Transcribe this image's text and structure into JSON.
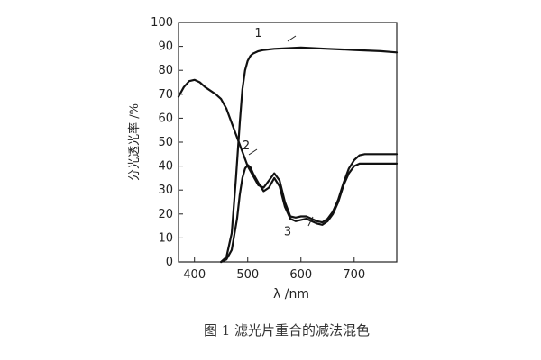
{
  "chart_data": {
    "type": "line",
    "title": "",
    "caption": "图 1  滤光片重合的减法混色",
    "xlabel": "λ /nm",
    "ylabel": "分光透光率 /%",
    "xlim": [
      370,
      780
    ],
    "ylim": [
      0,
      100
    ],
    "xticks": [
      400,
      500,
      600,
      700
    ],
    "yticks": [
      0,
      10,
      20,
      30,
      40,
      50,
      60,
      70,
      80,
      90,
      100
    ],
    "grid": false,
    "series": [
      {
        "name": "1",
        "x": [
          450,
          460,
          470,
          478,
          485,
          490,
          495,
          500,
          505,
          510,
          520,
          530,
          550,
          600,
          650,
          700,
          750,
          780
        ],
        "y": [
          0,
          2,
          12,
          35,
          58,
          72,
          80,
          84,
          86,
          87,
          88,
          88.5,
          89,
          89.5,
          89,
          88.5,
          88,
          87.5
        ]
      },
      {
        "name": "2",
        "x": [
          370,
          380,
          390,
          400,
          410,
          420,
          430,
          440,
          450,
          460,
          470,
          480,
          490,
          500,
          510,
          520,
          530,
          540,
          550,
          560,
          570,
          580,
          590,
          600,
          610,
          620,
          630,
          640,
          650,
          660,
          670,
          680,
          690,
          700,
          710,
          720,
          730,
          740,
          780
        ],
        "y": [
          69,
          73,
          75.5,
          76,
          75,
          73,
          71.5,
          70,
          68,
          64,
          58,
          52,
          46,
          40,
          36,
          32,
          31,
          34,
          37,
          34,
          25,
          19,
          18.5,
          19,
          19,
          18,
          17,
          16.5,
          18,
          21,
          26,
          33,
          39,
          42.5,
          44.5,
          45,
          45,
          45,
          45
        ]
      },
      {
        "name": "3",
        "x": [
          450,
          460,
          470,
          480,
          485,
          490,
          495,
          500,
          505,
          510,
          520,
          530,
          540,
          550,
          560,
          570,
          580,
          590,
          600,
          610,
          620,
          630,
          640,
          650,
          660,
          670,
          680,
          690,
          700,
          710,
          720,
          730,
          740,
          780
        ],
        "y": [
          0,
          1,
          5,
          18,
          28,
          35,
          39,
          40.5,
          39.5,
          37,
          33,
          29.5,
          31,
          35,
          31.5,
          23,
          18,
          17,
          17.5,
          18,
          17,
          16,
          15.5,
          17,
          20,
          25,
          32,
          37,
          40,
          41,
          41,
          41,
          41,
          41
        ]
      }
    ],
    "annotations": [
      {
        "text": "1",
        "series": "1",
        "x": 520,
        "y": 94
      },
      {
        "text": "2",
        "series": "2",
        "x": 497,
        "y": 47
      },
      {
        "text": "3",
        "series": "3",
        "x": 575,
        "y": 11
      }
    ]
  }
}
